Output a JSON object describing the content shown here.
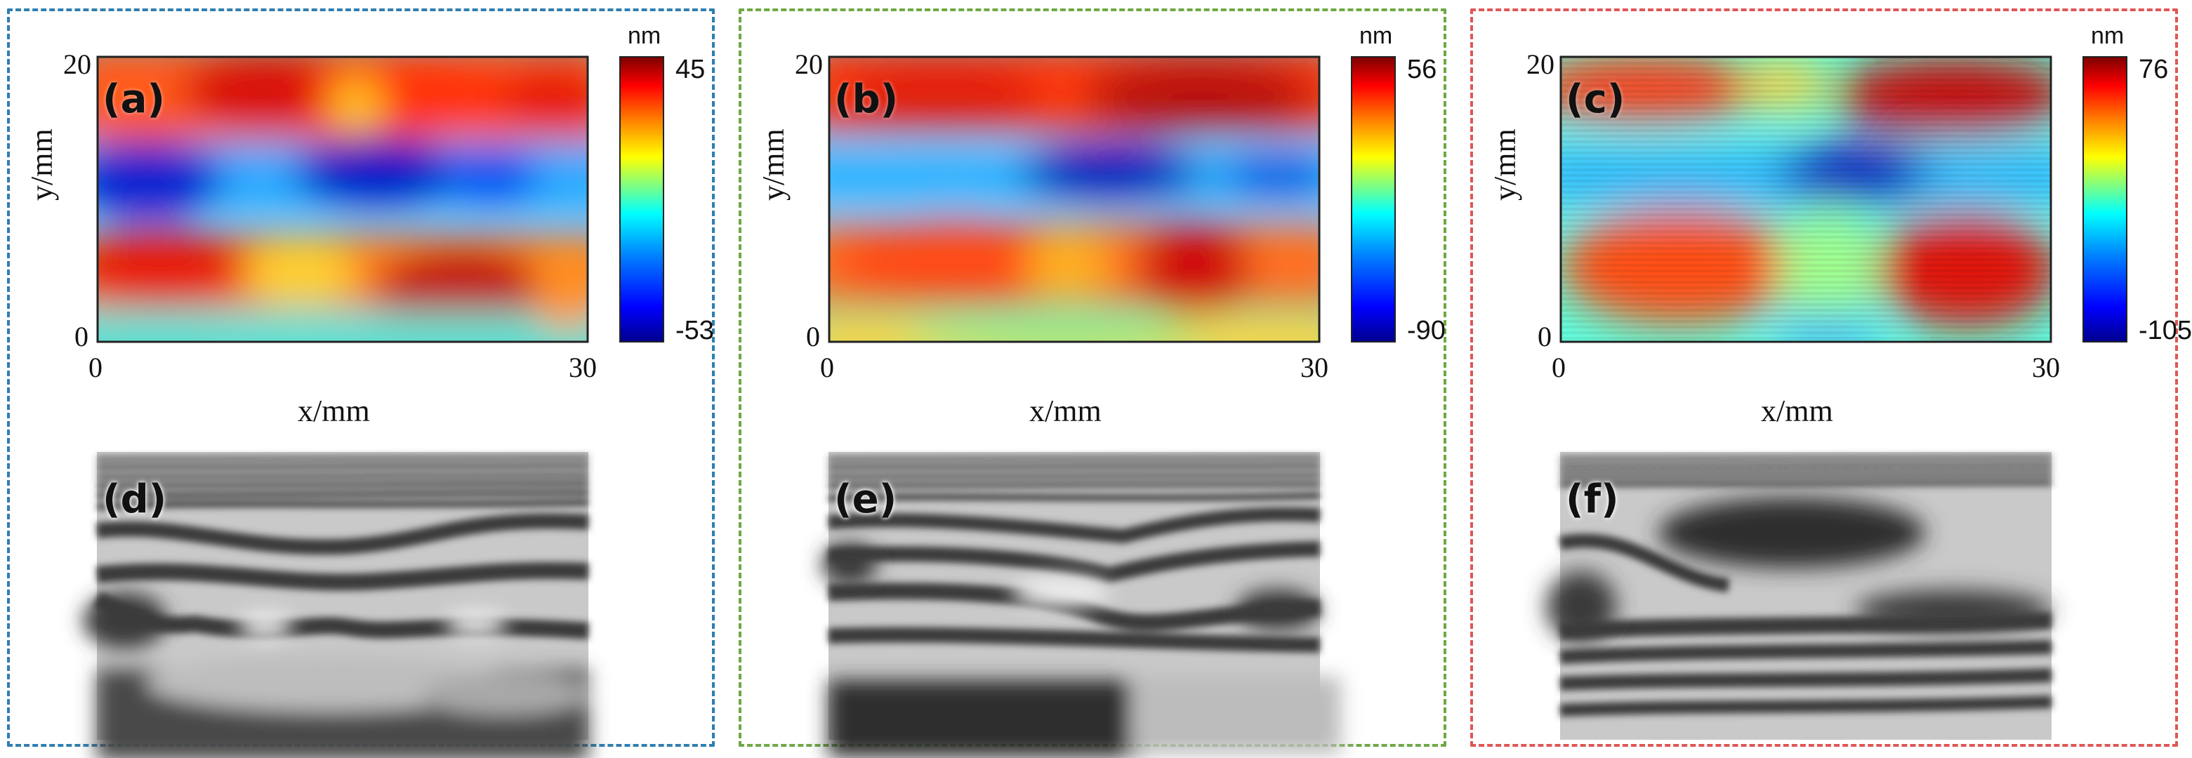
{
  "panels": [
    {
      "heatmap_label": "(a)",
      "fringe_label": "(d)",
      "colorbar": {
        "unit": "nm",
        "max": "45",
        "min": "-53"
      },
      "axes": {
        "x_ticks": [
          "0",
          "30"
        ],
        "y_ticks": [
          "0",
          "20"
        ],
        "x_title": "x/mm",
        "y_title": "y/mm"
      },
      "border_color": "#2f7fb0"
    },
    {
      "heatmap_label": "(b)",
      "fringe_label": "(e)",
      "colorbar": {
        "unit": "nm",
        "max": "56",
        "min": "-90"
      },
      "axes": {
        "x_ticks": [
          "0",
          "30"
        ],
        "y_ticks": [
          "0",
          "20"
        ],
        "x_title": "x/mm",
        "y_title": "y/mm"
      },
      "border_color": "#6fa844"
    },
    {
      "heatmap_label": "(c)",
      "fringe_label": "(f)",
      "colorbar": {
        "unit": "nm",
        "max": "76",
        "min": "-105"
      },
      "axes": {
        "x_ticks": [
          "0",
          "30"
        ],
        "y_ticks": [
          "0",
          "20"
        ],
        "x_title": "x/mm",
        "y_title": "y/mm"
      },
      "border_color": "#e05757"
    }
  ],
  "colors": {
    "jet_low": "#00008f",
    "jet_mid": "#00ffff",
    "jet_high": "#800000"
  }
}
